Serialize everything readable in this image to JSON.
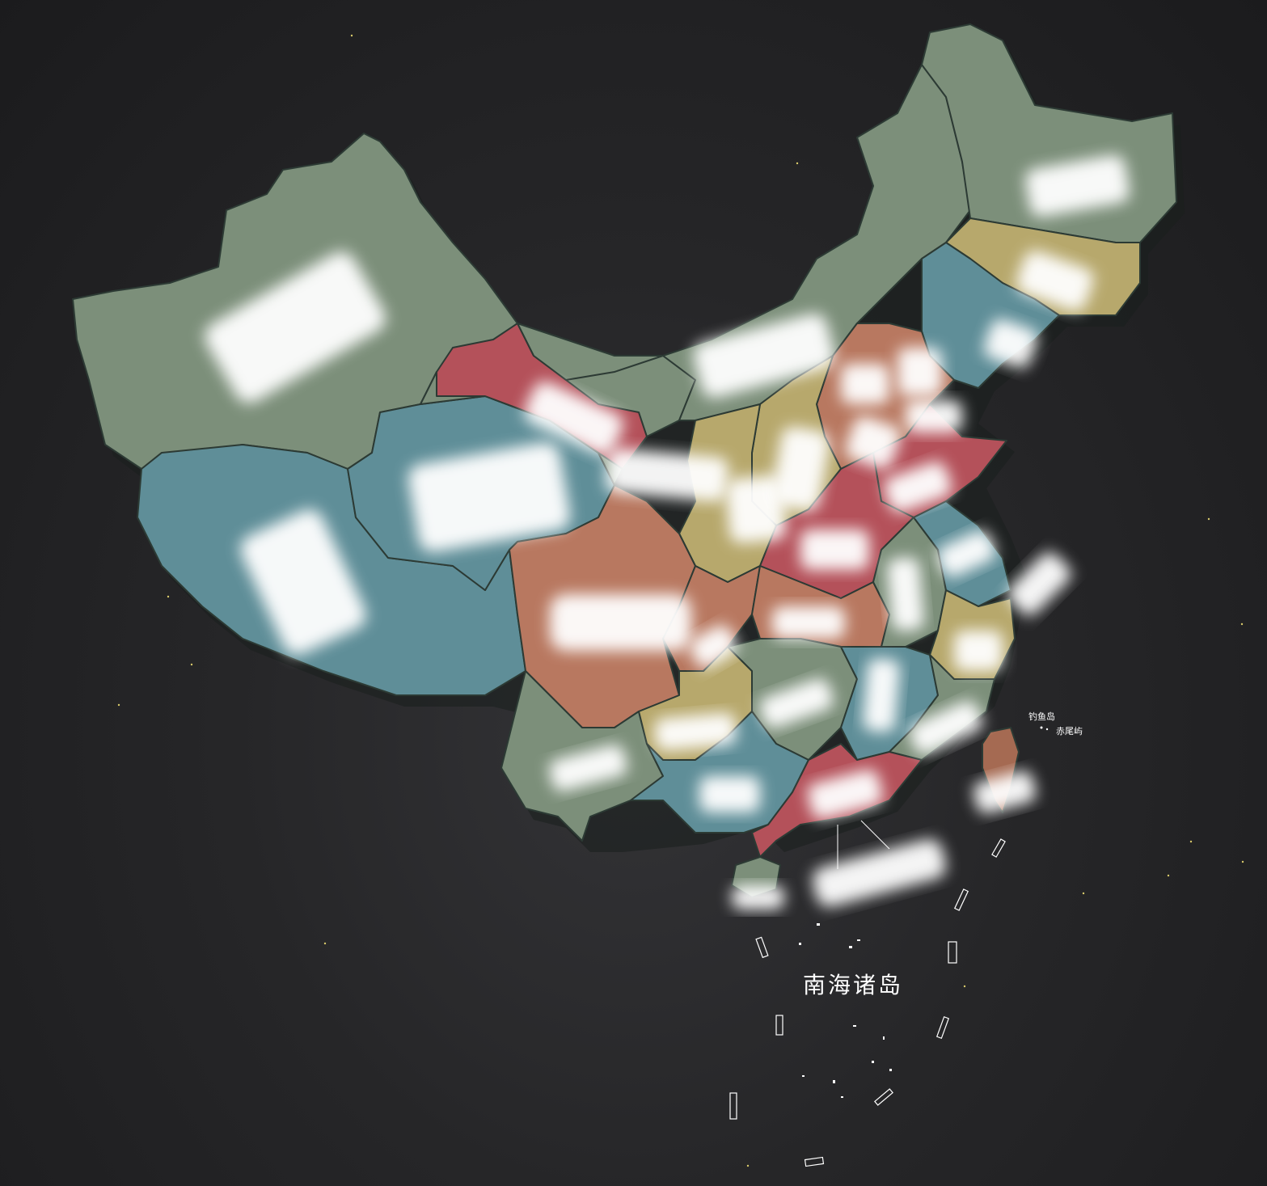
{
  "colors": {
    "sage": "#7c8f7a",
    "teal": "#5f8e98",
    "red": "#b4515a",
    "orange": "#b87860",
    "khaki": "#b7a86c",
    "taiwan": "#a56a52",
    "background": "#262628"
  },
  "labels": {
    "south_sea_islands": "南海诸岛",
    "diaoyu": "钓鱼岛",
    "chiwei": "赤尾屿"
  },
  "regions": [
    {
      "id": "xinjiang",
      "color": "sage"
    },
    {
      "id": "xizang",
      "color": "teal"
    },
    {
      "id": "qinghai",
      "color": "teal"
    },
    {
      "id": "gansu",
      "color": "sage"
    },
    {
      "id": "neimenggu",
      "color": "sage"
    },
    {
      "id": "heilongjiang",
      "color": "sage"
    },
    {
      "id": "jilin",
      "color": "khaki"
    },
    {
      "id": "liaoning",
      "color": "teal"
    },
    {
      "id": "ningxia",
      "color": "red"
    },
    {
      "id": "shaanxi",
      "color": "khaki"
    },
    {
      "id": "shanxi",
      "color": "khaki"
    },
    {
      "id": "hebei",
      "color": "orange"
    },
    {
      "id": "shandong",
      "color": "red"
    },
    {
      "id": "henan",
      "color": "red"
    },
    {
      "id": "sichuan",
      "color": "orange"
    },
    {
      "id": "chongqing",
      "color": "orange"
    },
    {
      "id": "hubei",
      "color": "orange"
    },
    {
      "id": "anhui",
      "color": "sage"
    },
    {
      "id": "jiangsu",
      "color": "teal"
    },
    {
      "id": "zhejiang",
      "color": "khaki"
    },
    {
      "id": "yunnan",
      "color": "sage"
    },
    {
      "id": "guizhou",
      "color": "khaki"
    },
    {
      "id": "hunan",
      "color": "sage"
    },
    {
      "id": "jiangxi",
      "color": "teal"
    },
    {
      "id": "fujian",
      "color": "sage"
    },
    {
      "id": "guangxi",
      "color": "teal"
    },
    {
      "id": "guangdong",
      "color": "red"
    },
    {
      "id": "hainan",
      "color": "sage"
    },
    {
      "id": "taiwan",
      "color": "taiwan"
    }
  ]
}
